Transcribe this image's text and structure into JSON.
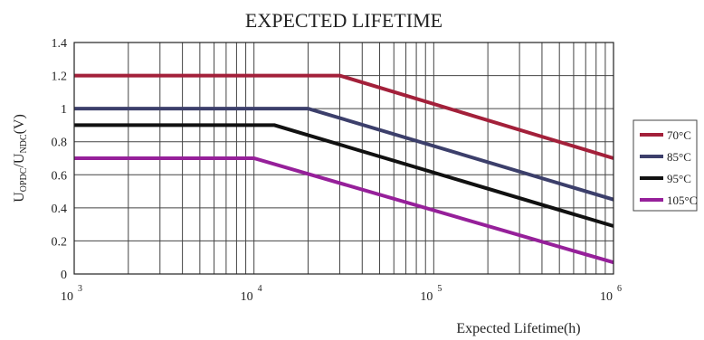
{
  "chart_data": {
    "type": "line",
    "title": "EXPECTED LIFETIME",
    "xlabel": "Expected Lifetime(h)",
    "ylabel": {
      "parts": [
        {
          "text": "U",
          "sub": false
        },
        {
          "text": "OPDC",
          "sub": true
        },
        {
          "text": "/U",
          "sub": false
        },
        {
          "text": "NDC",
          "sub": true
        },
        {
          "text": "(V)",
          "sub": false
        }
      ]
    },
    "x_scale": "log",
    "xlim": [
      1000,
      1000000
    ],
    "ylim": [
      0,
      1.4
    ],
    "grid": true,
    "x_ticks": [
      {
        "value": 1000,
        "base": "10",
        "exp": "3"
      },
      {
        "value": 10000,
        "base": "10",
        "exp": "4"
      },
      {
        "value": 100000,
        "base": "10",
        "exp": "5"
      },
      {
        "value": 1000000,
        "base": "10",
        "exp": "6"
      }
    ],
    "y_ticks": [
      {
        "value": 0,
        "label": "0"
      },
      {
        "value": 0.2,
        "label": "0.2"
      },
      {
        "value": 0.4,
        "label": "0.4"
      },
      {
        "value": 0.6,
        "label": "0.6"
      },
      {
        "value": 0.8,
        "label": "0.8"
      },
      {
        "value": 1.0,
        "label": "1"
      },
      {
        "value": 1.2,
        "label": "1.2"
      },
      {
        "value": 1.4,
        "label": "1.4"
      }
    ],
    "legend_position": "right",
    "series": [
      {
        "name": "70°C",
        "color": "#a3203a",
        "points": [
          [
            1000,
            1.2
          ],
          [
            30000,
            1.2
          ],
          [
            1000000,
            0.7
          ]
        ]
      },
      {
        "name": "85°C",
        "color": "#3c3f6b",
        "points": [
          [
            1000,
            1.0
          ],
          [
            20000,
            1.0
          ],
          [
            1000000,
            0.45
          ]
        ]
      },
      {
        "name": "95°C",
        "color": "#111111",
        "points": [
          [
            1000,
            0.9
          ],
          [
            13000,
            0.9
          ],
          [
            1000000,
            0.29
          ]
        ]
      },
      {
        "name": "105°C",
        "color": "#96209a",
        "points": [
          [
            1000,
            0.7
          ],
          [
            10000,
            0.7
          ],
          [
            1000000,
            0.07
          ]
        ]
      }
    ]
  }
}
